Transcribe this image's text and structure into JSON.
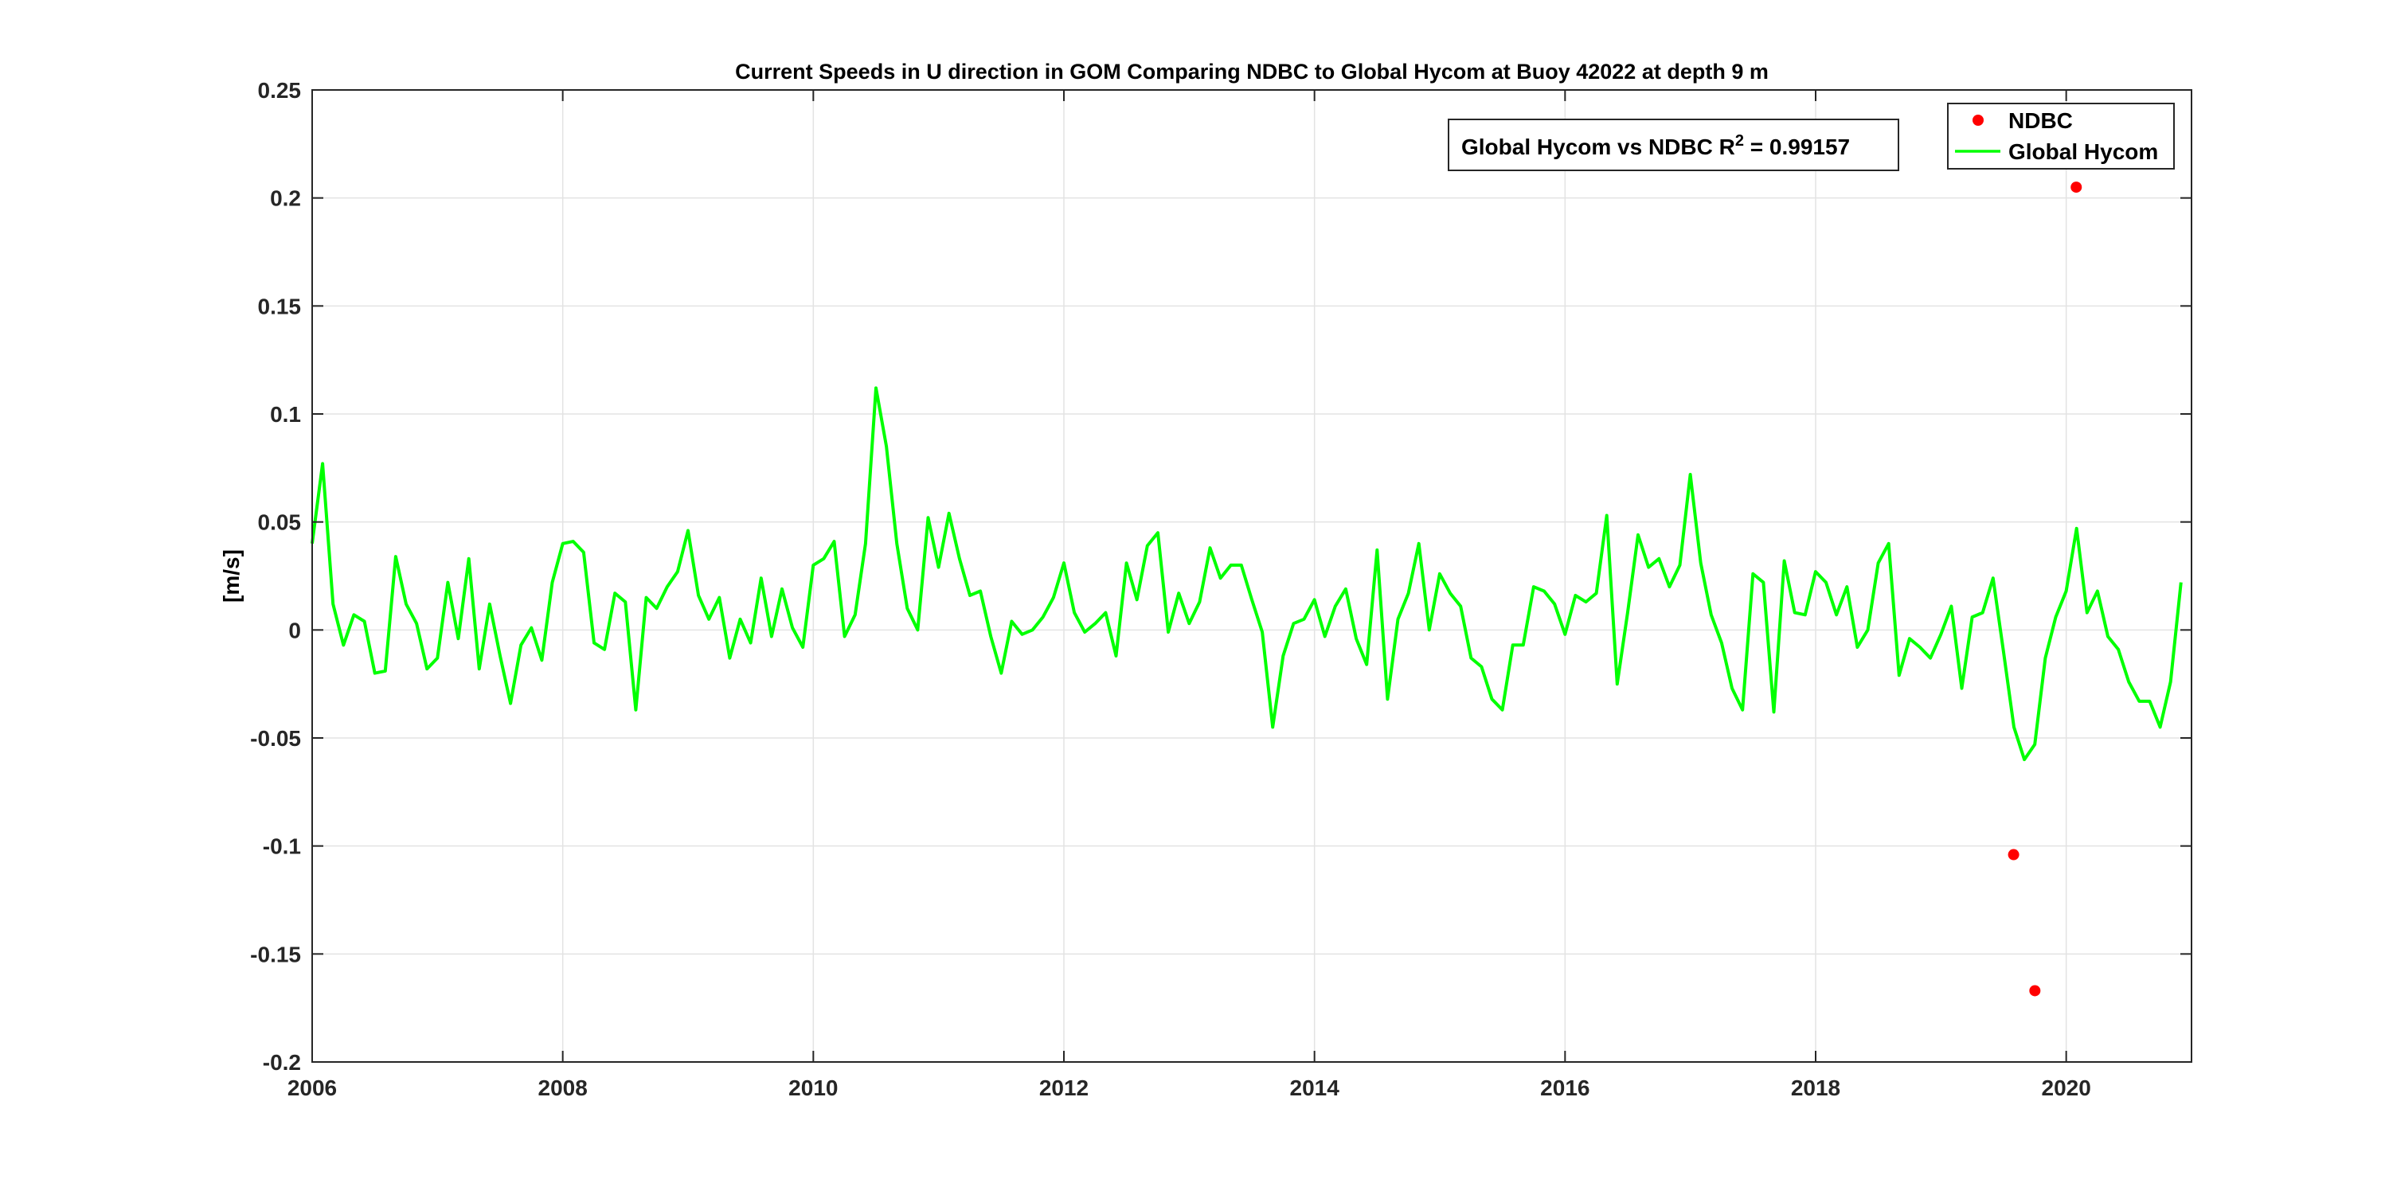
{
  "chart_data": {
    "type": "line",
    "title": "Current Speeds in U direction in GOM Comparing NDBC to Global Hycom at Buoy  42022  at depth  9 m",
    "xlabel": "",
    "ylabel": "[m/s]",
    "xlim": [
      2006,
      2021
    ],
    "ylim": [
      -0.2,
      0.25
    ],
    "xticks": [
      2006,
      2008,
      2010,
      2012,
      2014,
      2016,
      2018,
      2020
    ],
    "yticks": [
      -0.2,
      -0.15,
      -0.1,
      -0.05,
      0,
      0.05,
      0.1,
      0.15,
      0.2,
      0.25
    ],
    "xtick_labels": [
      "2006",
      "2008",
      "2010",
      "2012",
      "2014",
      "2016",
      "2018",
      "2020"
    ],
    "ytick_labels": [
      "-0.2",
      "-0.15",
      "-0.1",
      "-0.05",
      "0",
      "0.05",
      "0.1",
      "0.15",
      "0.2",
      "0.25"
    ],
    "grid": true,
    "legend_position": "top-right",
    "annotation": {
      "prefix": "Global Hycom vs NDBC R",
      "superscript": "2",
      "suffix": " = 0.99157"
    },
    "series": [
      {
        "name": "NDBC",
        "kind": "markers",
        "color": "#ff0000",
        "points": [
          {
            "x": 2019.58,
            "y": -0.104
          },
          {
            "x": 2019.75,
            "y": -0.167
          },
          {
            "x": 2020.08,
            "y": 0.205
          }
        ]
      },
      {
        "name": "Global Hycom",
        "kind": "line",
        "color": "#00ff00",
        "x_start": 2006.0,
        "x_step": 0.08333,
        "values": [
          0.04,
          0.077,
          0.012,
          -0.007,
          0.007,
          0.004,
          -0.02,
          -0.019,
          0.034,
          0.012,
          0.003,
          -0.018,
          -0.013,
          0.022,
          -0.004,
          0.033,
          -0.018,
          0.012,
          -0.012,
          -0.034,
          -0.007,
          0.001,
          -0.014,
          0.022,
          0.04,
          0.041,
          0.036,
          -0.006,
          -0.009,
          0.017,
          0.013,
          -0.037,
          0.015,
          0.01,
          0.02,
          0.027,
          0.046,
          0.016,
          0.005,
          0.015,
          -0.013,
          0.005,
          -0.006,
          0.024,
          -0.003,
          0.019,
          0.001,
          -0.008,
          0.03,
          0.033,
          0.041,
          -0.003,
          0.007,
          0.04,
          0.112,
          0.085,
          0.04,
          0.01,
          0.0,
          0.052,
          0.029,
          0.054,
          0.033,
          0.016,
          0.018,
          -0.003,
          -0.02,
          0.004,
          -0.002,
          0.0,
          0.006,
          0.015,
          0.031,
          0.008,
          -0.001,
          0.003,
          0.008,
          -0.012,
          0.031,
          0.014,
          0.039,
          0.045,
          -0.001,
          0.017,
          0.003,
          0.013,
          0.038,
          0.024,
          0.03,
          0.03,
          0.014,
          -0.001,
          -0.045,
          -0.012,
          0.003,
          0.005,
          0.014,
          -0.003,
          0.011,
          0.019,
          -0.004,
          -0.016,
          0.037,
          -0.032,
          0.005,
          0.017,
          0.04,
          0.0,
          0.026,
          0.017,
          0.011,
          -0.013,
          -0.017,
          -0.032,
          -0.037,
          -0.007,
          -0.007,
          0.02,
          0.018,
          0.012,
          -0.002,
          0.016,
          0.013,
          0.017,
          0.053,
          -0.025,
          0.008,
          0.044,
          0.029,
          0.033,
          0.02,
          0.03,
          0.072,
          0.031,
          0.007,
          -0.006,
          -0.027,
          -0.037,
          0.026,
          0.022,
          -0.038,
          0.032,
          0.008,
          0.007,
          0.027,
          0.022,
          0.007,
          0.02,
          -0.008,
          0.0,
          0.031,
          0.04,
          -0.021,
          -0.004,
          -0.008,
          -0.013,
          -0.002,
          0.011,
          -0.027,
          0.006,
          0.008,
          0.024,
          -0.01,
          -0.045,
          -0.06,
          -0.053,
          -0.013,
          0.006,
          0.018,
          0.047,
          0.008,
          0.018,
          -0.003,
          -0.009,
          -0.024,
          -0.033,
          -0.033,
          -0.045,
          -0.024,
          0.022
        ]
      }
    ]
  }
}
